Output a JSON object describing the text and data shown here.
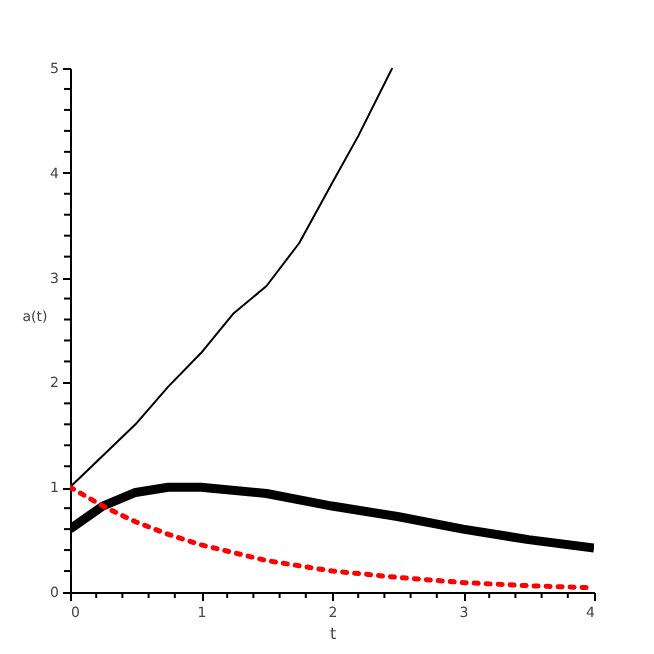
{
  "chart_data": {
    "type": "line",
    "xlabel": "t",
    "ylabel": "a(t)",
    "series": [
      {
        "color": "#000000",
        "line_style": "solid",
        "x": [
          0,
          0.25,
          0.5,
          0.75,
          1,
          1.25,
          1.5,
          1.75,
          2,
          2.2,
          2.46
        ],
        "values": [
          1,
          1.3,
          1.6,
          1.96,
          2.28,
          2.66,
          2.92,
          3.33,
          3.9,
          4.35,
          5
        ]
      },
      {
        "color": "#000000",
        "line_style": "solid",
        "x": [
          0,
          0.25,
          0.5,
          0.75,
          1,
          1.5,
          2,
          2.5,
          3,
          3.5,
          4
        ],
        "values": [
          0.6,
          0.82,
          0.95,
          1.0,
          1.0,
          0.94,
          0.82,
          0.72,
          0.6,
          0.5,
          0.42
        ]
      },
      {
        "color": "#ff0000",
        "line_style": "dotted",
        "x": [
          0,
          0.25,
          0.5,
          0.75,
          1,
          1.5,
          2,
          2.5,
          3,
          3.5,
          4
        ],
        "values": [
          1,
          0.82,
          0.67,
          0.55,
          0.45,
          0.3,
          0.2,
          0.14,
          0.09,
          0.06,
          0.04
        ]
      }
    ],
    "xlim": [
      0,
      4
    ],
    "ylim": [
      0,
      5
    ],
    "xticks": [
      0,
      {
        "value": 0.2,
        "label": null
      },
      {
        "value": 0.4,
        "label": null
      },
      {
        "value": 0.6,
        "label": null
      },
      {
        "value": 0.8,
        "label": null
      },
      1,
      {
        "value": 1.2,
        "label": null
      },
      {
        "value": 1.4,
        "label": null
      },
      {
        "value": 1.6,
        "label": null
      },
      {
        "value": 1.8,
        "label": null
      },
      2,
      {
        "value": 2.2,
        "label": null
      },
      {
        "value": 2.4,
        "label": null
      },
      {
        "value": 2.6,
        "label": null
      },
      {
        "value": 2.8,
        "label": null
      },
      3,
      {
        "value": 3.2,
        "label": null
      },
      {
        "value": 3.4,
        "label": null
      },
      {
        "value": 3.6,
        "label": null
      },
      {
        "value": 3.8,
        "label": null
      },
      4
    ],
    "yticks": [
      0,
      {
        "value": 0.2,
        "label": null
      },
      {
        "value": 0.4,
        "label": null
      },
      {
        "value": 0.6,
        "label": null
      },
      {
        "value": 0.8,
        "label": null
      },
      1,
      {
        "value": 1.2,
        "label": null
      },
      {
        "value": 1.4,
        "label": null
      },
      {
        "value": 1.6,
        "label": null
      },
      {
        "value": 1.8,
        "label": null
      },
      2,
      {
        "value": 2.2,
        "label": null
      },
      {
        "value": 2.4,
        "label": null
      },
      {
        "value": 2.6,
        "label": null
      },
      {
        "value": 2.8,
        "label": null
      },
      3,
      {
        "value": 3.2,
        "label": null
      },
      {
        "value": 3.4,
        "label": null
      },
      {
        "value": 3.6,
        "label": null
      },
      {
        "value": 3.8,
        "label": null
      },
      4,
      {
        "value": 4.2,
        "label": null
      },
      {
        "value": 4.4,
        "label": null
      },
      {
        "value": 4.6,
        "label": null
      },
      {
        "value": 4.8,
        "label": null
      },
      5
    ],
    "grid": false,
    "marker": "none"
  }
}
